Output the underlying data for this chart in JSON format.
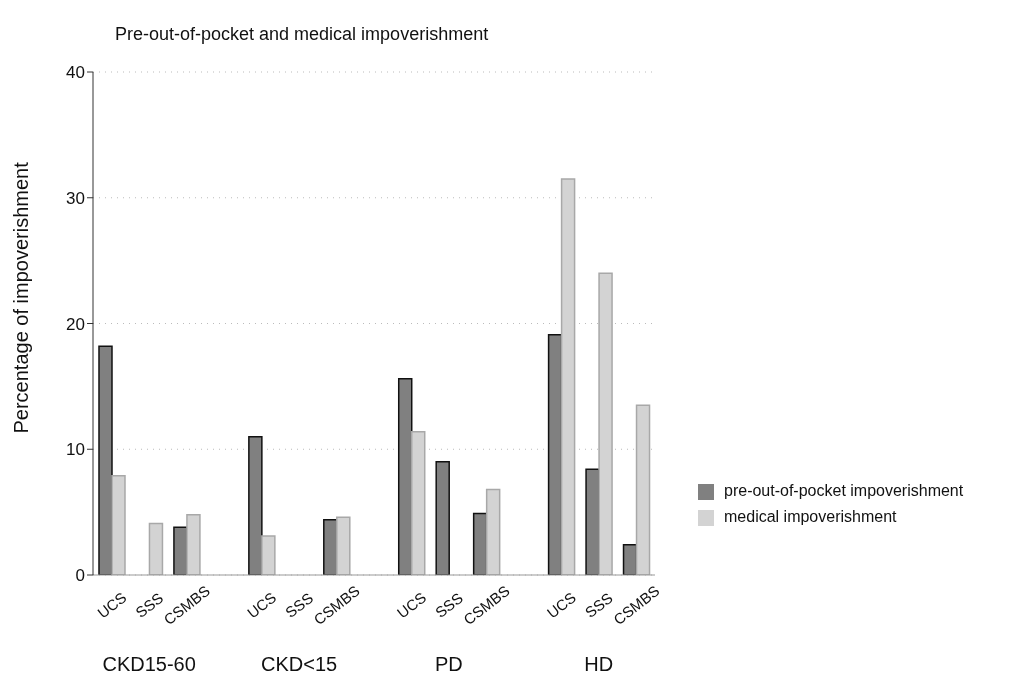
{
  "chart_data": {
    "type": "bar",
    "title": "Pre-out-of-pocket and medical impoverishment",
    "ylabel": "Percentage of impoverishment",
    "categories": [
      "UCS",
      "SSS",
      "CSMBS",
      "UCS",
      "SSS",
      "CSMBS",
      "UCS",
      "SSS",
      "CSMBS",
      "UCS",
      "SSS",
      "CSMBS"
    ],
    "annotations": [
      "CKD15-60",
      "CKD<15",
      "PD",
      "HD"
    ],
    "series": [
      {
        "name": "pre-out-of-pocket impoverishment",
        "color": "#808080",
        "values": [
          18.2,
          0,
          3.8,
          11.0,
          0,
          4.4,
          15.6,
          9.0,
          4.9,
          19.1,
          8.4,
          2.4
        ]
      },
      {
        "name": "medical impoverishment",
        "color": "#d3d3d3",
        "values": [
          7.9,
          4.1,
          4.8,
          3.1,
          0,
          4.6,
          11.4,
          0,
          6.8,
          31.5,
          24.0,
          13.5
        ]
      }
    ],
    "ylim": [
      0,
      40
    ],
    "yticks": [
      0,
      10,
      20,
      30,
      40
    ],
    "grid": "y",
    "legend": "right"
  }
}
